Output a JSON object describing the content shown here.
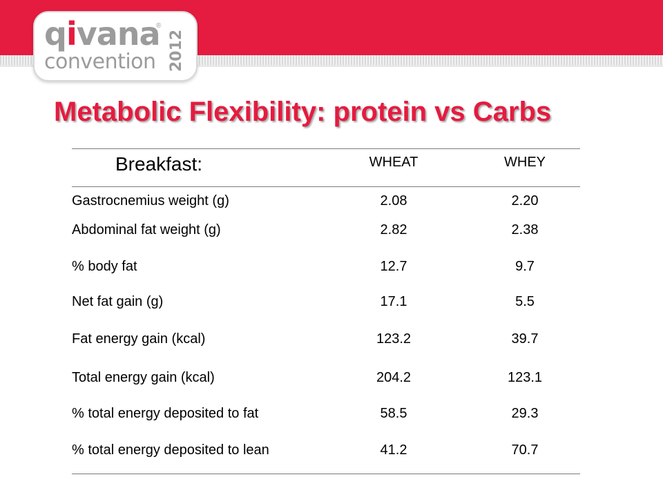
{
  "logo": {
    "brand_a": "q",
    "brand_i": "i",
    "brand_rest": "vana",
    "registered": "®",
    "subtitle": "convention",
    "year": "2012"
  },
  "title": "Metabolic Flexibility: protein vs Carbs",
  "table": {
    "header_label": "Breakfast:",
    "columns": [
      "WHEAT",
      "WHEY"
    ],
    "rows": [
      {
        "label": "Gastrocnemius weight (g)",
        "wheat": "2.08",
        "whey": "2.20"
      },
      {
        "label": "Abdominal fat weight (g)",
        "wheat": "2.82",
        "whey": "2.38"
      },
      {
        "label": "% body fat",
        "wheat": "12.7",
        "whey": "9.7"
      },
      {
        "label": "Net fat gain (g)",
        "wheat": "17.1",
        "whey": "5.5"
      },
      {
        "label": "Fat energy gain (kcal)",
        "wheat": "123.2",
        "whey": "39.7"
      },
      {
        "label": "Total energy gain (kcal)",
        "wheat": "204.2",
        "whey": "123.1"
      },
      {
        "label": "% total energy deposited to fat",
        "wheat": "58.5",
        "whey": "29.3"
      },
      {
        "label": "% total energy deposited to lean",
        "wheat": "41.2",
        "whey": "70.7"
      }
    ]
  },
  "colors": {
    "accent": "#e51b3f",
    "logo_gray": "#9b9b9b"
  }
}
